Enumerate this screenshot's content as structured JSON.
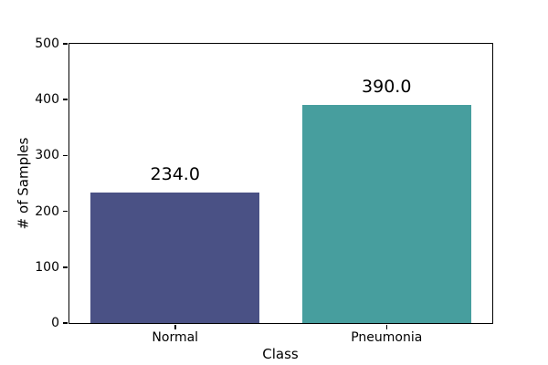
{
  "chart_data": {
    "type": "bar",
    "title": "",
    "xlabel": "Class",
    "ylabel": "# of Samples",
    "categories": [
      "Normal",
      "Pneumonia"
    ],
    "values": [
      234,
      390
    ],
    "bar_labels": [
      "234.0",
      "390.0"
    ],
    "bar_colors": [
      "#4a5185",
      "#479e9e"
    ],
    "ylim": [
      0,
      500
    ],
    "yticks": [
      0,
      100,
      200,
      300,
      400,
      500
    ],
    "bar_width_fraction": 0.8,
    "grid": false,
    "legend": "none",
    "background_color": "#ffffff",
    "spine_color": "#000000",
    "text_color": "#000000"
  }
}
